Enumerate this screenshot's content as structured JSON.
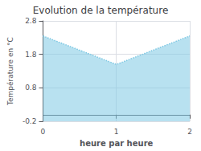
{
  "chart_data": {
    "type": "area",
    "title": "Evolution de la température",
    "x": [
      0,
      1,
      2
    ],
    "values": [
      2.35,
      1.5,
      2.35
    ],
    "xlabel": "heure par heure",
    "ylabel": "Température en °C",
    "xlim": [
      0,
      2
    ],
    "ylim": [
      -0.2,
      2.8
    ],
    "xticks": [
      0,
      1,
      2
    ],
    "yticks": [
      -0.2,
      0.8,
      1.8,
      2.8
    ],
    "color": "#7ec8e3",
    "line_style": "dotted",
    "grid": true
  }
}
